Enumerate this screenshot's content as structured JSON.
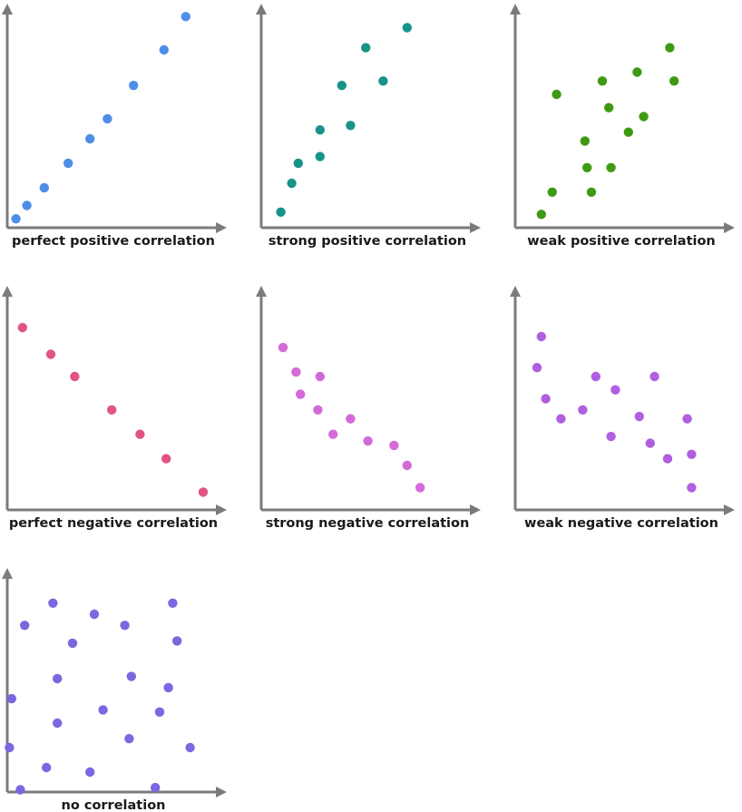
{
  "chart_data": [
    {
      "type": "scatter",
      "title": "perfect positive correlation",
      "color": "#4f8ee6",
      "xlim": [
        0,
        10
      ],
      "ylim": [
        0,
        10
      ],
      "points": [
        {
          "x": 0.4,
          "y": 0.4
        },
        {
          "x": 0.9,
          "y": 1.0
        },
        {
          "x": 1.7,
          "y": 1.8
        },
        {
          "x": 2.8,
          "y": 2.9
        },
        {
          "x": 3.8,
          "y": 4.0
        },
        {
          "x": 4.6,
          "y": 4.9
        },
        {
          "x": 5.8,
          "y": 6.4
        },
        {
          "x": 7.2,
          "y": 8.0
        },
        {
          "x": 8.2,
          "y": 9.5
        }
      ]
    },
    {
      "type": "scatter",
      "title": "strong positive correlation",
      "color": "#17938a",
      "xlim": [
        0,
        10
      ],
      "ylim": [
        0,
        10
      ],
      "points": [
        {
          "x": 0.9,
          "y": 0.7
        },
        {
          "x": 1.4,
          "y": 2.0
        },
        {
          "x": 1.7,
          "y": 2.9
        },
        {
          "x": 2.7,
          "y": 3.2
        },
        {
          "x": 2.7,
          "y": 4.4
        },
        {
          "x": 3.7,
          "y": 6.4
        },
        {
          "x": 4.1,
          "y": 4.6
        },
        {
          "x": 4.8,
          "y": 8.1
        },
        {
          "x": 5.6,
          "y": 6.6
        },
        {
          "x": 6.7,
          "y": 9.0
        }
      ]
    },
    {
      "type": "scatter",
      "title": "weak positive correlation",
      "color": "#3e9a12",
      "xlim": [
        0,
        10
      ],
      "ylim": [
        0,
        10
      ],
      "points": [
        {
          "x": 1.2,
          "y": 0.6
        },
        {
          "x": 1.7,
          "y": 1.6
        },
        {
          "x": 1.9,
          "y": 6.0
        },
        {
          "x": 3.2,
          "y": 3.9
        },
        {
          "x": 3.3,
          "y": 2.7
        },
        {
          "x": 3.5,
          "y": 1.6
        },
        {
          "x": 4.0,
          "y": 6.6
        },
        {
          "x": 4.3,
          "y": 5.4
        },
        {
          "x": 4.4,
          "y": 2.7
        },
        {
          "x": 5.2,
          "y": 4.3
        },
        {
          "x": 5.6,
          "y": 7.0
        },
        {
          "x": 5.9,
          "y": 5.0
        },
        {
          "x": 7.1,
          "y": 8.1
        },
        {
          "x": 7.3,
          "y": 6.6
        }
      ]
    },
    {
      "type": "scatter",
      "title": "perfect negative correlation",
      "color": "#e0557f",
      "xlim": [
        0,
        10
      ],
      "ylim": [
        0,
        10
      ],
      "points": [
        {
          "x": 0.7,
          "y": 8.2
        },
        {
          "x": 2.0,
          "y": 7.0
        },
        {
          "x": 3.1,
          "y": 6.0
        },
        {
          "x": 4.8,
          "y": 4.5
        },
        {
          "x": 6.1,
          "y": 3.4
        },
        {
          "x": 7.3,
          "y": 2.3
        },
        {
          "x": 9.0,
          "y": 0.8
        }
      ]
    },
    {
      "type": "scatter",
      "title": "strong negative correlation",
      "color": "#d46ad8",
      "xlim": [
        0,
        10
      ],
      "ylim": [
        0,
        10
      ],
      "points": [
        {
          "x": 1.0,
          "y": 7.3
        },
        {
          "x": 1.6,
          "y": 6.2
        },
        {
          "x": 1.8,
          "y": 5.2
        },
        {
          "x": 2.7,
          "y": 6.0
        },
        {
          "x": 2.6,
          "y": 4.5
        },
        {
          "x": 3.3,
          "y": 3.4
        },
        {
          "x": 4.1,
          "y": 4.1
        },
        {
          "x": 4.9,
          "y": 3.1
        },
        {
          "x": 6.1,
          "y": 2.9
        },
        {
          "x": 6.7,
          "y": 2.0
        },
        {
          "x": 7.3,
          "y": 1.0
        }
      ]
    },
    {
      "type": "scatter",
      "title": "weak negative correlation",
      "color": "#b05fe0",
      "xlim": [
        0,
        10
      ],
      "ylim": [
        0,
        10
      ],
      "points": [
        {
          "x": 1.2,
          "y": 7.8
        },
        {
          "x": 1.0,
          "y": 6.4
        },
        {
          "x": 1.4,
          "y": 5.0
        },
        {
          "x": 2.1,
          "y": 4.1
        },
        {
          "x": 3.1,
          "y": 4.5
        },
        {
          "x": 3.7,
          "y": 6.0
        },
        {
          "x": 4.4,
          "y": 3.3
        },
        {
          "x": 4.6,
          "y": 5.4
        },
        {
          "x": 5.7,
          "y": 4.2
        },
        {
          "x": 6.2,
          "y": 3.0
        },
        {
          "x": 6.4,
          "y": 6.0
        },
        {
          "x": 7.0,
          "y": 2.3
        },
        {
          "x": 7.9,
          "y": 4.1
        },
        {
          "x": 8.1,
          "y": 2.5
        },
        {
          "x": 8.1,
          "y": 1.0
        }
      ]
    },
    {
      "type": "scatter",
      "title": "no correlation",
      "color": "#7b68e0",
      "xlim": [
        0,
        10
      ],
      "ylim": [
        0,
        10
      ],
      "points": [
        {
          "x": 0.6,
          "y": 0.1
        },
        {
          "x": 0.1,
          "y": 2.0
        },
        {
          "x": 0.2,
          "y": 4.2
        },
        {
          "x": 0.8,
          "y": 7.5
        },
        {
          "x": 1.8,
          "y": 1.1
        },
        {
          "x": 2.1,
          "y": 8.5
        },
        {
          "x": 2.3,
          "y": 3.1
        },
        {
          "x": 2.3,
          "y": 5.1
        },
        {
          "x": 3.0,
          "y": 6.7
        },
        {
          "x": 3.8,
          "y": 0.9
        },
        {
          "x": 4.0,
          "y": 8.0
        },
        {
          "x": 4.4,
          "y": 3.7
        },
        {
          "x": 5.4,
          "y": 7.5
        },
        {
          "x": 5.6,
          "y": 2.4
        },
        {
          "x": 5.7,
          "y": 5.2
        },
        {
          "x": 6.8,
          "y": 0.2
        },
        {
          "x": 7.0,
          "y": 3.6
        },
        {
          "x": 7.4,
          "y": 4.7
        },
        {
          "x": 7.6,
          "y": 8.5
        },
        {
          "x": 7.8,
          "y": 6.8
        },
        {
          "x": 8.4,
          "y": 2.0
        }
      ]
    }
  ]
}
